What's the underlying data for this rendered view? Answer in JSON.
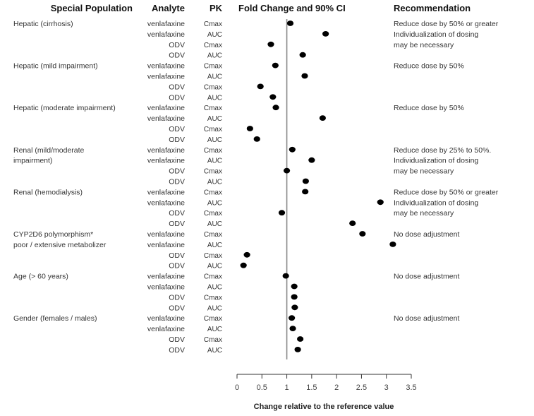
{
  "chart_data": {
    "type": "scatter",
    "title": "Fold Change and 90% CI",
    "xlabel": "Change relative to the reference value",
    "xlim": [
      0,
      3.5
    ],
    "xticks": [
      "0",
      "0.5",
      "1",
      "1.5",
      "2",
      "2.5",
      "3",
      "3.5"
    ],
    "xtick_values": [
      0,
      0.5,
      1,
      1.5,
      2,
      2.5,
      3,
      3.5
    ],
    "reference_line": 1,
    "grid": false,
    "column_headers": {
      "population": "Special Population",
      "analyte": "Analyte",
      "pk": "PK",
      "plot": "Fold Change and 90% CI",
      "recommendation": "Recommendation"
    },
    "groups": [
      {
        "population": [
          "Hepatic (cirrhosis)"
        ],
        "recommendation": [
          "Reduce dose by 50% or greater",
          "Individualization of dosing",
          "may be necessary"
        ],
        "rows": [
          {
            "analyte": "venlafaxine",
            "pk": "Cmax",
            "value": 1.07
          },
          {
            "analyte": "venlafaxine",
            "pk": "AUC",
            "value": 1.78
          },
          {
            "analyte": "ODV",
            "pk": "Cmax",
            "value": 0.68
          },
          {
            "analyte": "ODV",
            "pk": "AUC",
            "value": 1.32
          }
        ]
      },
      {
        "population": [
          "Hepatic (mild impairment)"
        ],
        "recommendation": [
          "Reduce dose by 50%"
        ],
        "rows": [
          {
            "analyte": "venlafaxine",
            "pk": "Cmax",
            "value": 0.77
          },
          {
            "analyte": "venlafaxine",
            "pk": "AUC",
            "value": 1.36
          },
          {
            "analyte": "ODV",
            "pk": "Cmax",
            "value": 0.47
          },
          {
            "analyte": "ODV",
            "pk": "AUC",
            "value": 0.72
          }
        ]
      },
      {
        "population": [
          "Hepatic (moderate impairment)"
        ],
        "recommendation": [
          "Reduce dose by 50%"
        ],
        "rows": [
          {
            "analyte": "venlafaxine",
            "pk": "Cmax",
            "value": 0.78
          },
          {
            "analyte": "venlafaxine",
            "pk": "AUC",
            "value": 1.72
          },
          {
            "analyte": "ODV",
            "pk": "Cmax",
            "value": 0.26
          },
          {
            "analyte": "ODV",
            "pk": "AUC",
            "value": 0.4
          }
        ]
      },
      {
        "population": [
          "Renal (mild/moderate",
          "impairment)"
        ],
        "recommendation": [
          "Reduce dose by 25% to 50%.",
          "Individualization of dosing",
          "may be necessary"
        ],
        "rows": [
          {
            "analyte": "venlafaxine",
            "pk": "Cmax",
            "value": 1.11
          },
          {
            "analyte": "venlafaxine",
            "pk": "AUC",
            "value": 1.5
          },
          {
            "analyte": "ODV",
            "pk": "Cmax",
            "value": 1.0
          },
          {
            "analyte": "ODV",
            "pk": "AUC",
            "value": 1.38
          }
        ]
      },
      {
        "population": [
          "Renal (hemodialysis)"
        ],
        "recommendation": [
          "Reduce dose by 50% or greater",
          "Individualization of dosing",
          "may be necessary"
        ],
        "rows": [
          {
            "analyte": "venlafaxine",
            "pk": "Cmax",
            "value": 1.37
          },
          {
            "analyte": "venlafaxine",
            "pk": "AUC",
            "value": 2.88
          },
          {
            "analyte": "ODV",
            "pk": "Cmax",
            "value": 0.9
          },
          {
            "analyte": "ODV",
            "pk": "AUC",
            "value": 2.32
          }
        ]
      },
      {
        "population": [
          "CYP2D6 polymorphism*",
          "poor / extensive metabolizer"
        ],
        "recommendation": [
          "No dose adjustment"
        ],
        "rows": [
          {
            "analyte": "venlafaxine",
            "pk": "Cmax",
            "value": 2.52
          },
          {
            "analyte": "venlafaxine",
            "pk": "AUC",
            "value": 3.13
          },
          {
            "analyte": "ODV",
            "pk": "Cmax",
            "value": 0.2
          },
          {
            "analyte": "ODV",
            "pk": "AUC",
            "value": 0.13
          }
        ]
      },
      {
        "population": [
          "Age (> 60 years)"
        ],
        "recommendation": [
          "No dose adjustment"
        ],
        "rows": [
          {
            "analyte": "venlafaxine",
            "pk": "Cmax",
            "value": 0.98
          },
          {
            "analyte": "venlafaxine",
            "pk": "AUC",
            "value": 1.15
          },
          {
            "analyte": "ODV",
            "pk": "Cmax",
            "value": 1.15
          },
          {
            "analyte": "ODV",
            "pk": "AUC",
            "value": 1.16
          }
        ]
      },
      {
        "population": [
          "Gender (females / males)"
        ],
        "recommendation": [
          "No dose adjustment"
        ],
        "rows": [
          {
            "analyte": "venlafaxine",
            "pk": "Cmax",
            "value": 1.1
          },
          {
            "analyte": "venlafaxine",
            "pk": "AUC",
            "value": 1.12
          },
          {
            "analyte": "ODV",
            "pk": "Cmax",
            "value": 1.27
          },
          {
            "analyte": "ODV",
            "pk": "AUC",
            "value": 1.22
          }
        ]
      }
    ]
  }
}
